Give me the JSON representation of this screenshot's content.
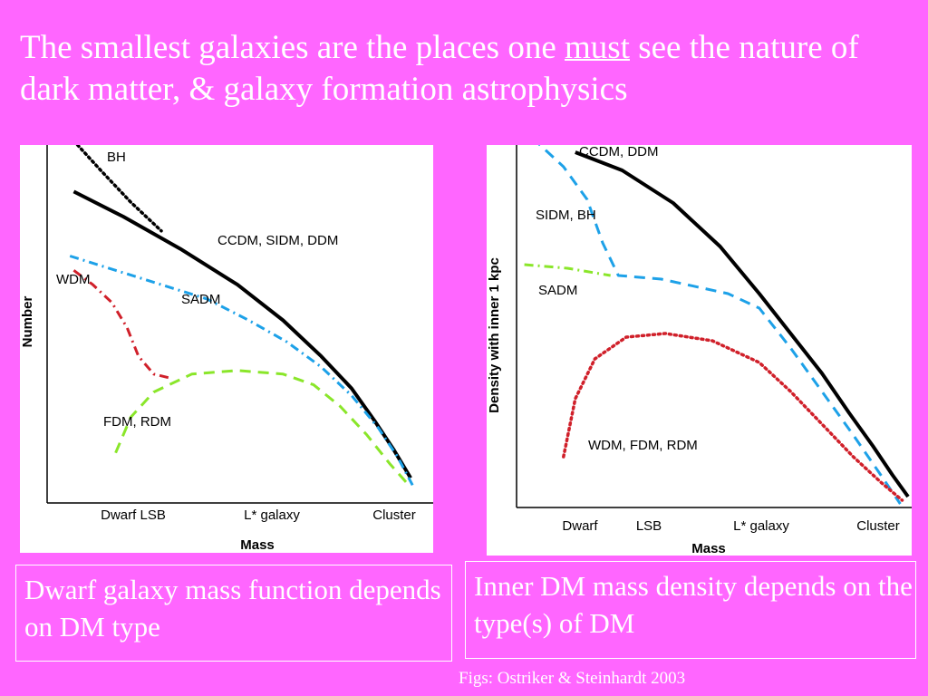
{
  "slide": {
    "title_part1": "The smallest galaxies are the places one ",
    "title_emph": "must",
    "title_part2": " see the nature of dark matter, & galaxy formation astrophysics",
    "caption_left": "Dwarf galaxy mass function depends on DM type",
    "caption_right": "Inner DM mass density depends on the type(s) of DM",
    "credit": "Figs: Ostriker & Steinhardt 2003"
  },
  "colors": {
    "background": "#ff66ff",
    "text": "#ffffff",
    "black": "#000000",
    "blue": "#1da1e8",
    "red": "#d0202a",
    "green": "#8ae62a"
  },
  "chart_data": [
    {
      "type": "line",
      "title": "",
      "xlabel": "Mass",
      "ylabel": "Number",
      "xticklabels": [
        "Dwarf LSB",
        "L* galaxy",
        "Cluster"
      ],
      "xlim": [
        0,
        1
      ],
      "ylim": [
        0,
        1
      ],
      "grid": false,
      "series": [
        {
          "name": "BH",
          "style": "dotted",
          "color": "#000000",
          "x": [
            0.08,
            0.14,
            0.22,
            0.3
          ],
          "y": [
            1.0,
            0.93,
            0.84,
            0.76
          ]
        },
        {
          "name": "CCDM, SIDM, DDM",
          "style": "solid",
          "color": "#000000",
          "x": [
            0.07,
            0.2,
            0.35,
            0.5,
            0.62,
            0.72,
            0.8,
            0.86,
            0.91,
            0.955
          ],
          "y": [
            0.87,
            0.8,
            0.71,
            0.61,
            0.51,
            0.41,
            0.32,
            0.23,
            0.15,
            0.07
          ]
        },
        {
          "name": "SADM",
          "style": "dash-dot",
          "color": "#1da1e8",
          "x": [
            0.06,
            0.18,
            0.3,
            0.42,
            0.53,
            0.63,
            0.72,
            0.8,
            0.87,
            0.92,
            0.96
          ],
          "y": [
            0.69,
            0.65,
            0.61,
            0.57,
            0.51,
            0.45,
            0.38,
            0.3,
            0.21,
            0.13,
            0.05
          ]
        },
        {
          "name": "WDM",
          "style": "dash-dot",
          "color": "#d0202a",
          "x": [
            0.07,
            0.12,
            0.17,
            0.21,
            0.24,
            0.28,
            0.32
          ],
          "y": [
            0.65,
            0.61,
            0.56,
            0.49,
            0.41,
            0.36,
            0.35
          ]
        },
        {
          "name": "FDM, RDM",
          "style": "dashed",
          "color": "#8ae62a",
          "x": [
            0.18,
            0.22,
            0.28,
            0.38,
            0.5,
            0.62,
            0.7,
            0.77,
            0.84,
            0.9,
            0.95
          ],
          "y": [
            0.14,
            0.24,
            0.31,
            0.36,
            0.37,
            0.36,
            0.33,
            0.27,
            0.19,
            0.11,
            0.05
          ]
        }
      ],
      "annotations": [
        "BH",
        "CCDM, SIDM, DDM",
        "WDM",
        "SADM",
        "FDM, RDM"
      ]
    },
    {
      "type": "line",
      "title": "",
      "xlabel": "Mass",
      "ylabel": "Density with inner 1 kpc",
      "xticklabels": [
        "Dwarf",
        "LSB",
        "L* galaxy",
        "Cluster"
      ],
      "xlim": [
        0,
        1
      ],
      "ylim": [
        0,
        1
      ],
      "grid": false,
      "series": [
        {
          "name": "CCDM, DDM",
          "style": "solid",
          "color": "#000000",
          "x": [
            0.15,
            0.27,
            0.4,
            0.52,
            0.62,
            0.7,
            0.78,
            0.85,
            0.91,
            0.96,
            1.0
          ],
          "y": [
            0.98,
            0.93,
            0.84,
            0.72,
            0.59,
            0.48,
            0.37,
            0.26,
            0.17,
            0.09,
            0.03
          ]
        },
        {
          "name": "SIDM, BH",
          "style": "dashed",
          "color": "#1da1e8",
          "x": [
            0.04,
            0.12,
            0.18,
            0.22,
            0.26,
            0.37,
            0.54,
            0.62,
            0.7,
            0.78,
            0.86,
            0.93,
            0.98
          ],
          "y": [
            1.02,
            0.94,
            0.85,
            0.73,
            0.64,
            0.63,
            0.59,
            0.55,
            0.44,
            0.32,
            0.2,
            0.09,
            0.01
          ]
        },
        {
          "name": "SADM",
          "style": "dash-dot",
          "color": "#8ae62a",
          "x": [
            0.02,
            0.13,
            0.24
          ],
          "y": [
            0.67,
            0.66,
            0.64
          ]
        },
        {
          "name": "WDM, FDM, RDM",
          "style": "dotted",
          "color": "#d0202a",
          "x": [
            0.12,
            0.15,
            0.2,
            0.28,
            0.38,
            0.5,
            0.62,
            0.7,
            0.78,
            0.86,
            0.93,
            0.985
          ],
          "y": [
            0.14,
            0.3,
            0.41,
            0.47,
            0.48,
            0.46,
            0.4,
            0.32,
            0.23,
            0.14,
            0.07,
            0.02
          ]
        }
      ],
      "annotations": [
        "CCDM, DDM",
        "SIDM, BH",
        "SADM",
        "WDM, FDM, RDM"
      ]
    }
  ]
}
